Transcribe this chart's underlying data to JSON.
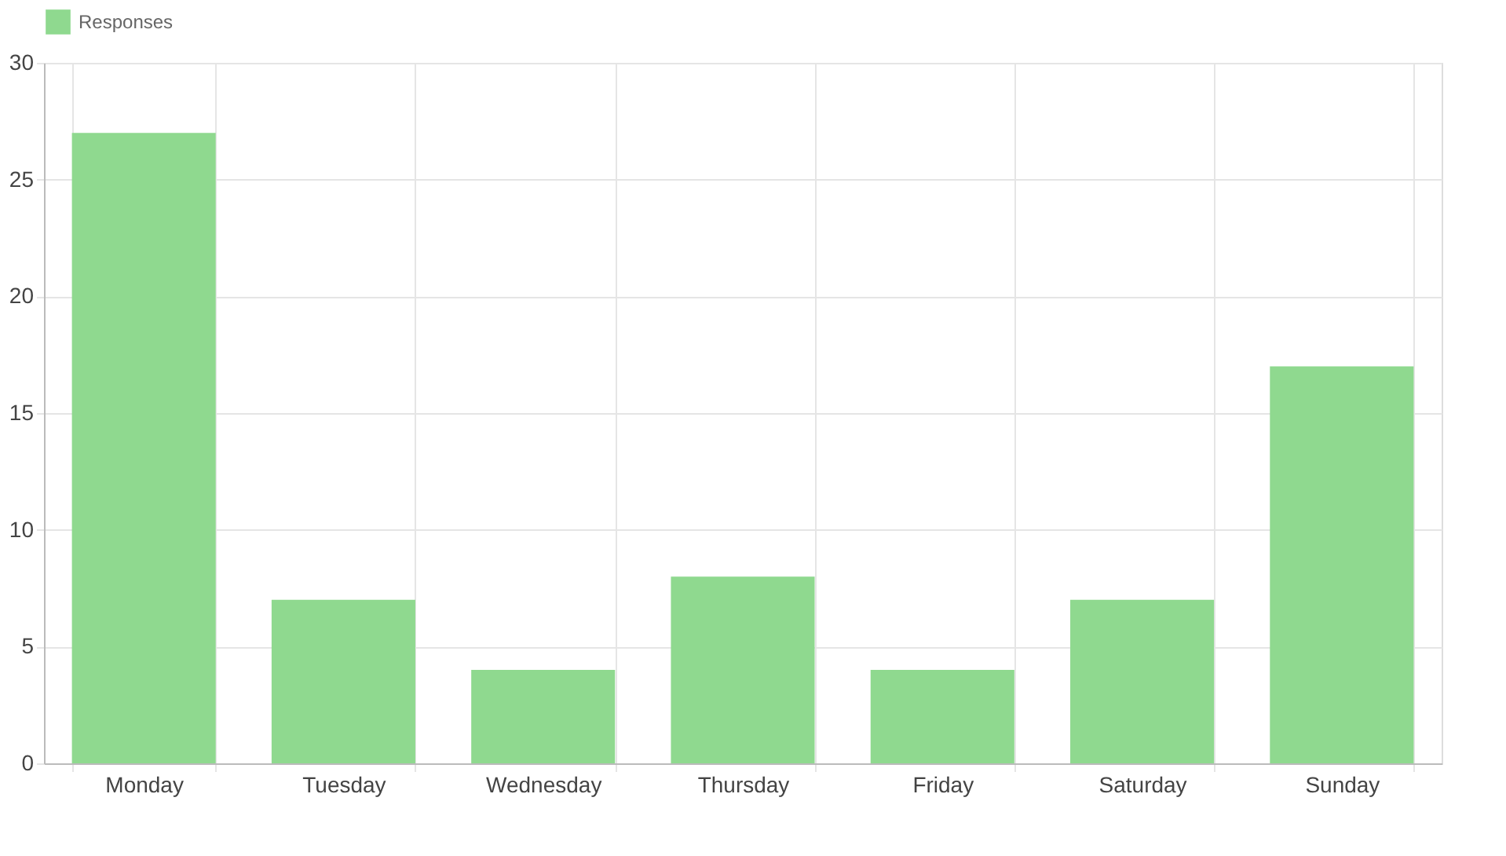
{
  "chart_data": {
    "type": "bar",
    "categories": [
      "Monday",
      "Tuesday",
      "Wednesday",
      "Thursday",
      "Friday",
      "Saturday",
      "Sunday"
    ],
    "series": [
      {
        "name": "Responses",
        "color": "#8fd98f",
        "values": [
          27,
          7,
          4,
          8,
          4,
          7,
          17
        ]
      }
    ],
    "ylim": [
      0,
      30
    ],
    "yticks": [
      0,
      5,
      10,
      15,
      20,
      25,
      30
    ],
    "grid": true,
    "legend": "top"
  }
}
